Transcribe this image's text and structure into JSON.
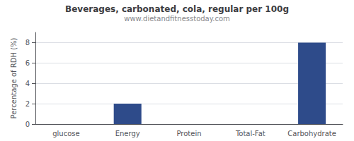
{
  "chart_data": {
    "type": "bar",
    "title": "Beverages, carbonated, cola, regular per 100g",
    "subtitle": "www.dietandfitnesstoday.com",
    "categories": [
      "glucose",
      "Energy",
      "Protein",
      "Total-Fat",
      "Carbohydrate"
    ],
    "values": [
      0,
      2,
      0,
      0,
      8
    ],
    "color": "#2e4b8a",
    "ylabel": "Percentage of RDH (%)",
    "ylim": [
      0,
      9
    ],
    "yticks": [
      0,
      2,
      4,
      6,
      8
    ],
    "grid": true
  }
}
